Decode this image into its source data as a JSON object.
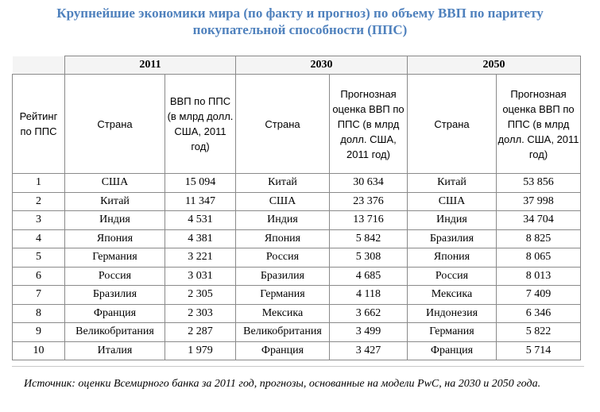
{
  "title": {
    "line1": "Крупнейшие экономики мира (по факту и прогноз) по объему ВВП по паритету",
    "line2": "покупательной способности (ППС)"
  },
  "years": [
    "2011",
    "2030",
    "2050"
  ],
  "headers": {
    "rank": "Рейтинг по ППС",
    "country": "Страна",
    "gdp_2011": "ВВП по ППС (в млрд долл. США, 2011 год)",
    "forecast": "Прогнозная оценка ВВП по ППС (в млрд долл. США, 2011 год)"
  },
  "rows": [
    {
      "rank": "1",
      "c2011": "США",
      "v2011": "15 094",
      "c2030": "Китай",
      "v2030": "30 634",
      "c2050": "Китай",
      "v2050": "53 856"
    },
    {
      "rank": "2",
      "c2011": "Китай",
      "v2011": "11 347",
      "c2030": "США",
      "v2030": "23 376",
      "c2050": "США",
      "v2050": "37 998"
    },
    {
      "rank": "3",
      "c2011": "Индия",
      "v2011": "4 531",
      "c2030": "Индия",
      "v2030": "13 716",
      "c2050": "Индия",
      "v2050": "34 704"
    },
    {
      "rank": "4",
      "c2011": "Япония",
      "v2011": "4 381",
      "c2030": "Япония",
      "v2030": "5 842",
      "c2050": "Бразилия",
      "v2050": "8 825"
    },
    {
      "rank": "5",
      "c2011": "Германия",
      "v2011": "3 221",
      "c2030": "Россия",
      "v2030": "5 308",
      "c2050": "Япония",
      "v2050": "8 065"
    },
    {
      "rank": "6",
      "c2011": "Россия",
      "v2011": "3 031",
      "c2030": "Бразилия",
      "v2030": "4 685",
      "c2050": "Россия",
      "v2050": "8 013"
    },
    {
      "rank": "7",
      "c2011": "Бразилия",
      "v2011": "2 305",
      "c2030": "Германия",
      "v2030": "4 118",
      "c2050": "Мексика",
      "v2050": "7 409"
    },
    {
      "rank": "8",
      "c2011": "Франция",
      "v2011": "2 303",
      "c2030": "Мексика",
      "v2030": "3 662",
      "c2050": "Индонезия",
      "v2050": "6 346"
    },
    {
      "rank": "9",
      "c2011": "Великобритания",
      "v2011": "2 287",
      "c2030": "Великобритания",
      "v2030": "3 499",
      "c2050": "Германия",
      "v2050": "5 822"
    },
    {
      "rank": "10",
      "c2011": "Италия",
      "v2011": "1 979",
      "c2030": "Франция",
      "v2030": "3 427",
      "c2050": "Франция",
      "v2050": "5 714"
    }
  ],
  "source": {
    "text": "Источник: оценки Всемирного банка за 2011 год, прогнозы, основанные на модели PwC, на 2030 и 2050 года."
  }
}
